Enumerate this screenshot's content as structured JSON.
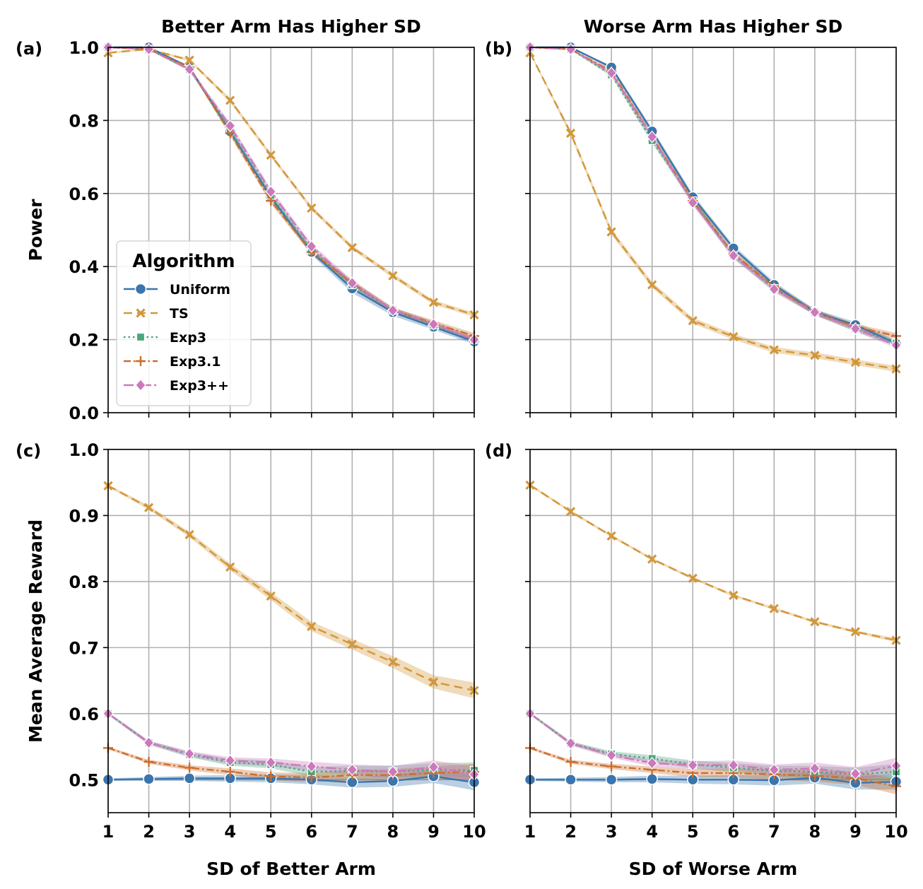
{
  "series_styles": [
    {
      "name": "Uniform",
      "color": "#3a75ad",
      "marker": "circle"
    },
    {
      "name": "TS",
      "color": "#d3973a",
      "marker": "x"
    },
    {
      "name": "Exp3",
      "color": "#4aa57d",
      "marker": "square"
    },
    {
      "name": "Exp3.1",
      "color": "#cc6e2c",
      "marker": "plus"
    },
    {
      "name": "Exp3++",
      "color": "#cc78bc",
      "marker": "diamond"
    }
  ],
  "legend": {
    "title": "Algorithm",
    "placement": "panel-a lower-left"
  },
  "chart_data": [
    {
      "id": "a",
      "panel_label": "(a)",
      "type": "line",
      "title": "Better Arm Has Higher SD",
      "xlabel": "",
      "ylabel": "Power",
      "x": [
        1,
        2,
        3,
        4,
        5,
        6,
        7,
        8,
        9,
        10
      ],
      "ylim": [
        0,
        1.0
      ],
      "yticks": [
        "0.0",
        "0.2",
        "0.4",
        "0.6",
        "0.8",
        "1.0"
      ],
      "show_x_tick_labels": false,
      "show_y_tick_labels": true,
      "series": [
        {
          "name": "Uniform",
          "values": [
            1.0,
            1.0,
            0.945,
            0.77,
            0.59,
            0.44,
            0.34,
            0.275,
            0.235,
            0.195
          ],
          "ci": [
            0.0,
            0.0,
            0.005,
            0.008,
            0.008,
            0.008,
            0.012,
            0.01,
            0.008,
            0.008
          ]
        },
        {
          "name": "TS",
          "values": [
            0.985,
            0.995,
            0.965,
            0.855,
            0.705,
            0.56,
            0.452,
            0.375,
            0.302,
            0.268
          ],
          "ci": [
            0.003,
            0.002,
            0.004,
            0.006,
            0.006,
            0.006,
            0.006,
            0.006,
            0.006,
            0.006
          ]
        },
        {
          "name": "Exp3",
          "values": [
            1.0,
            0.995,
            0.94,
            0.775,
            0.595,
            0.445,
            0.35,
            0.28,
            0.24,
            0.2
          ],
          "ci": [
            0.0,
            0.002,
            0.005,
            0.008,
            0.008,
            0.008,
            0.008,
            0.008,
            0.008,
            0.008
          ]
        },
        {
          "name": "Exp3.1",
          "values": [
            1.0,
            0.995,
            0.945,
            0.765,
            0.58,
            0.44,
            0.355,
            0.28,
            0.245,
            0.21
          ],
          "ci": [
            0.0,
            0.002,
            0.005,
            0.008,
            0.008,
            0.008,
            0.008,
            0.008,
            0.008,
            0.008
          ]
        },
        {
          "name": "Exp3++",
          "values": [
            1.0,
            0.995,
            0.94,
            0.785,
            0.605,
            0.455,
            0.355,
            0.28,
            0.242,
            0.2
          ],
          "ci": [
            0.0,
            0.002,
            0.005,
            0.008,
            0.008,
            0.008,
            0.008,
            0.008,
            0.008,
            0.008
          ]
        }
      ]
    },
    {
      "id": "b",
      "panel_label": "(b)",
      "type": "line",
      "title": "Worse Arm Has Higher SD",
      "xlabel": "",
      "ylabel": "",
      "x": [
        1,
        2,
        3,
        4,
        5,
        6,
        7,
        8,
        9,
        10
      ],
      "ylim": [
        0,
        1.0
      ],
      "yticks": [
        "0.0",
        "0.2",
        "0.4",
        "0.6",
        "0.8",
        "1.0"
      ],
      "show_x_tick_labels": false,
      "show_y_tick_labels": false,
      "series": [
        {
          "name": "Uniform",
          "values": [
            1.0,
            1.0,
            0.945,
            0.77,
            0.59,
            0.45,
            0.35,
            0.275,
            0.24,
            0.19
          ],
          "ci": [
            0.0,
            0.0,
            0.005,
            0.008,
            0.008,
            0.008,
            0.008,
            0.008,
            0.008,
            0.008
          ]
        },
        {
          "name": "TS",
          "values": [
            0.985,
            0.765,
            0.495,
            0.35,
            0.252,
            0.208,
            0.172,
            0.157,
            0.138,
            0.12
          ],
          "ci": [
            0.003,
            0.008,
            0.008,
            0.008,
            0.008,
            0.008,
            0.008,
            0.008,
            0.008,
            0.008
          ]
        },
        {
          "name": "Exp3",
          "values": [
            1.0,
            0.995,
            0.925,
            0.745,
            0.58,
            0.43,
            0.34,
            0.275,
            0.23,
            0.19
          ],
          "ci": [
            0.0,
            0.002,
            0.005,
            0.008,
            0.008,
            0.008,
            0.008,
            0.008,
            0.008,
            0.008
          ]
        },
        {
          "name": "Exp3.1",
          "values": [
            1.0,
            0.995,
            0.935,
            0.755,
            0.58,
            0.435,
            0.345,
            0.275,
            0.235,
            0.21
          ],
          "ci": [
            0.0,
            0.002,
            0.005,
            0.008,
            0.008,
            0.008,
            0.008,
            0.008,
            0.008,
            0.008
          ]
        },
        {
          "name": "Exp3++",
          "values": [
            1.0,
            0.995,
            0.93,
            0.755,
            0.575,
            0.43,
            0.338,
            0.275,
            0.23,
            0.185
          ],
          "ci": [
            0.0,
            0.002,
            0.005,
            0.008,
            0.008,
            0.008,
            0.008,
            0.008,
            0.008,
            0.008
          ]
        }
      ]
    },
    {
      "id": "c",
      "panel_label": "(c)",
      "type": "line",
      "title": "",
      "xlabel": "SD of Better Arm",
      "ylabel": "Mean Average Reward",
      "x": [
        1,
        2,
        3,
        4,
        5,
        6,
        7,
        8,
        9,
        10
      ],
      "ylim": [
        0.45,
        1.0
      ],
      "yticks": [
        "0.5",
        "0.6",
        "0.7",
        "0.8",
        "0.9",
        "1.0"
      ],
      "show_x_tick_labels": true,
      "show_y_tick_labels": true,
      "series": [
        {
          "name": "Uniform",
          "values": [
            0.5,
            0.501,
            0.502,
            0.502,
            0.502,
            0.5,
            0.496,
            0.498,
            0.505,
            0.496
          ],
          "ci": [
            0.002,
            0.003,
            0.004,
            0.005,
            0.006,
            0.007,
            0.008,
            0.009,
            0.01,
            0.012
          ]
        },
        {
          "name": "TS",
          "values": [
            0.945,
            0.912,
            0.871,
            0.822,
            0.778,
            0.732,
            0.705,
            0.678,
            0.648,
            0.635
          ],
          "ci": [
            0.002,
            0.003,
            0.004,
            0.005,
            0.006,
            0.007,
            0.008,
            0.009,
            0.01,
            0.012
          ]
        },
        {
          "name": "Exp3",
          "values": [
            0.6,
            0.556,
            0.538,
            0.526,
            0.523,
            0.512,
            0.513,
            0.512,
            0.515,
            0.514
          ],
          "ci": [
            0.002,
            0.003,
            0.004,
            0.005,
            0.006,
            0.007,
            0.008,
            0.009,
            0.01,
            0.012
          ]
        },
        {
          "name": "Exp3.1",
          "values": [
            0.548,
            0.527,
            0.518,
            0.512,
            0.505,
            0.503,
            0.507,
            0.507,
            0.51,
            0.512
          ],
          "ci": [
            0.002,
            0.003,
            0.004,
            0.005,
            0.006,
            0.007,
            0.008,
            0.009,
            0.01,
            0.012
          ]
        },
        {
          "name": "Exp3++",
          "values": [
            0.6,
            0.556,
            0.539,
            0.529,
            0.526,
            0.52,
            0.515,
            0.512,
            0.519,
            0.508
          ],
          "ci": [
            0.002,
            0.003,
            0.004,
            0.005,
            0.006,
            0.007,
            0.008,
            0.009,
            0.01,
            0.012
          ]
        }
      ]
    },
    {
      "id": "d",
      "panel_label": "(d)",
      "type": "line",
      "title": "",
      "xlabel": "SD of Worse Arm",
      "ylabel": "",
      "x": [
        1,
        2,
        3,
        4,
        5,
        6,
        7,
        8,
        9,
        10
      ],
      "ylim": [
        0.45,
        1.0
      ],
      "yticks": [
        "0.5",
        "0.6",
        "0.7",
        "0.8",
        "0.9",
        "1.0"
      ],
      "show_x_tick_labels": true,
      "show_y_tick_labels": false,
      "series": [
        {
          "name": "Uniform",
          "values": [
            0.5,
            0.5,
            0.5,
            0.501,
            0.5,
            0.5,
            0.499,
            0.503,
            0.495,
            0.497
          ],
          "ci": [
            0.002,
            0.003,
            0.004,
            0.005,
            0.006,
            0.007,
            0.008,
            0.009,
            0.01,
            0.012
          ]
        },
        {
          "name": "TS",
          "values": [
            0.946,
            0.906,
            0.869,
            0.834,
            0.805,
            0.779,
            0.759,
            0.739,
            0.724,
            0.711
          ],
          "ci": [
            0.002,
            0.002,
            0.002,
            0.002,
            0.002,
            0.002,
            0.002,
            0.002,
            0.002,
            0.003
          ]
        },
        {
          "name": "Exp3",
          "values": [
            0.6,
            0.555,
            0.539,
            0.532,
            0.523,
            0.518,
            0.513,
            0.512,
            0.508,
            0.512
          ],
          "ci": [
            0.002,
            0.003,
            0.004,
            0.005,
            0.006,
            0.007,
            0.008,
            0.009,
            0.01,
            0.012
          ]
        },
        {
          "name": "Exp3.1",
          "values": [
            0.548,
            0.527,
            0.52,
            0.515,
            0.51,
            0.51,
            0.508,
            0.506,
            0.502,
            0.49
          ],
          "ci": [
            0.002,
            0.003,
            0.004,
            0.005,
            0.006,
            0.007,
            0.008,
            0.009,
            0.01,
            0.012
          ]
        },
        {
          "name": "Exp3++",
          "values": [
            0.6,
            0.555,
            0.537,
            0.525,
            0.522,
            0.522,
            0.515,
            0.517,
            0.509,
            0.521
          ],
          "ci": [
            0.002,
            0.003,
            0.004,
            0.005,
            0.006,
            0.007,
            0.008,
            0.009,
            0.01,
            0.012
          ]
        }
      ]
    }
  ]
}
